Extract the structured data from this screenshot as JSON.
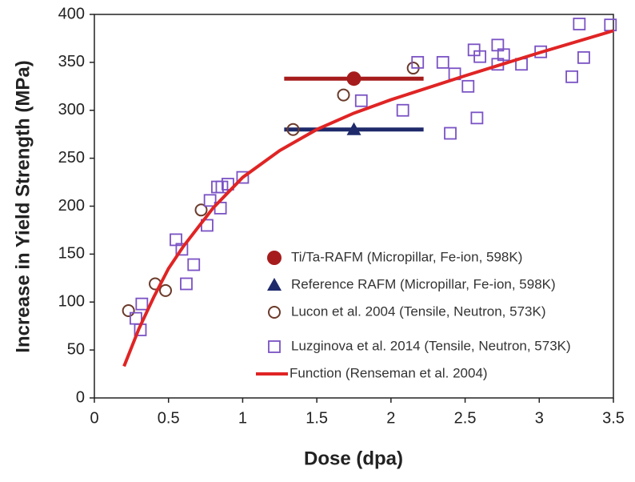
{
  "chart_data": {
    "type": "scatter",
    "x_label": "Dose (dpa)",
    "y_label": "Increase in Yield Strength (MPa)",
    "xlim": [
      0,
      3.5
    ],
    "ylim": [
      0,
      400
    ],
    "xticks": [
      0,
      0.5,
      1,
      1.5,
      2,
      2.5,
      3,
      3.5
    ],
    "yticks": [
      0,
      50,
      100,
      150,
      200,
      250,
      300,
      350,
      400
    ],
    "grid": false,
    "legend": "lower-right",
    "series": [
      {
        "name": "Ti/Ta-RAFM (Micropillar, Fe-ion, 598K)",
        "color": "#a61c1c",
        "marker": "circle-filled",
        "x": [
          1.75
        ],
        "values": [
          333
        ],
        "xerr": [
          0.47
        ]
      },
      {
        "name": "Reference RAFM (Micropillar, Fe-ion, 598K)",
        "color": "#1f2a6b",
        "marker": "triangle",
        "x": [
          1.75
        ],
        "values": [
          280
        ],
        "xerr": [
          0.47
        ]
      },
      {
        "name": "Lucon et al. 2004 (Tensile, Neutron, 573K)",
        "color": "#6b3a2a",
        "marker": "circle-open",
        "x": [
          0.23,
          0.41,
          0.48,
          0.72,
          1.34,
          1.68,
          2.15
        ],
        "values": [
          91,
          119,
          112,
          196,
          280,
          316,
          344
        ]
      },
      {
        "name": "Luzginova et al. 2014 (Tensile, Neutron, 573K)",
        "color": "#7a52c4",
        "marker": "square-open",
        "x": [
          0.28,
          0.32,
          0.31,
          0.55,
          0.59,
          0.62,
          0.67,
          0.76,
          0.78,
          0.83,
          0.85,
          0.86,
          0.9,
          1.0,
          1.8,
          2.08,
          2.18,
          2.35,
          2.4,
          2.43,
          2.52,
          2.56,
          2.58,
          2.6,
          2.72,
          2.72,
          2.76,
          2.88,
          3.01,
          3.22,
          3.27,
          3.3,
          3.48
        ],
        "values": [
          83,
          98,
          71,
          165,
          155,
          119,
          139,
          180,
          206,
          220,
          198,
          220,
          223,
          230,
          310,
          300,
          350,
          350,
          276,
          338,
          325,
          363,
          292,
          356,
          368,
          348,
          358,
          348,
          361,
          335,
          390,
          355,
          389
        ]
      },
      {
        "name": "Function (Renseman et al. 2004)",
        "color": "#e02424",
        "marker": "line",
        "x": [
          0.2,
          0.3,
          0.4,
          0.5,
          0.6,
          0.8,
          1.0,
          1.25,
          1.5,
          1.75,
          2.0,
          2.5,
          3.0,
          3.5
        ],
        "values": [
          33,
          72,
          105,
          135,
          158,
          198,
          230,
          258,
          280,
          297,
          311,
          336,
          360,
          383
        ]
      }
    ]
  }
}
